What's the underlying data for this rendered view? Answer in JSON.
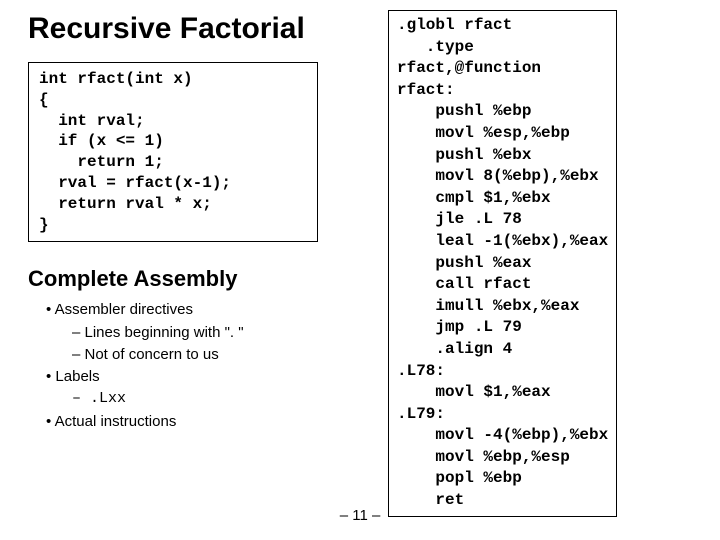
{
  "title": "Recursive Factorial",
  "c_code": "int rfact(int x)\n{\n  int rval;\n  if (x <= 1)\n    return 1;\n  rval = rfact(x-1);\n  return rval * x;\n}",
  "subhead": "Complete Assembly",
  "bullets": {
    "b1_1": "• Assembler directives",
    "b2_1": "– Lines beginning with \". \"",
    "b2_2": "– Not of concern to us",
    "b1_2": "• Labels",
    "b2_3": "– .Lxx",
    "b1_3": "• Actual instructions"
  },
  "asm_code": ".globl rfact\n   .type\nrfact,@function\nrfact:\n    pushl %ebp\n    movl %esp,%ebp\n    pushl %ebx\n    movl 8(%ebp),%ebx\n    cmpl $1,%ebx\n    jle .L 78\n    leal -1(%ebx),%eax\n    pushl %eax\n    call rfact\n    imull %ebx,%eax\n    jmp .L 79\n    .align 4\n.L78:\n    movl $1,%eax\n.L79:\n    movl -4(%ebp),%ebx\n    movl %ebp,%esp\n    popl %ebp\n    ret",
  "page_num": "– 11 –"
}
